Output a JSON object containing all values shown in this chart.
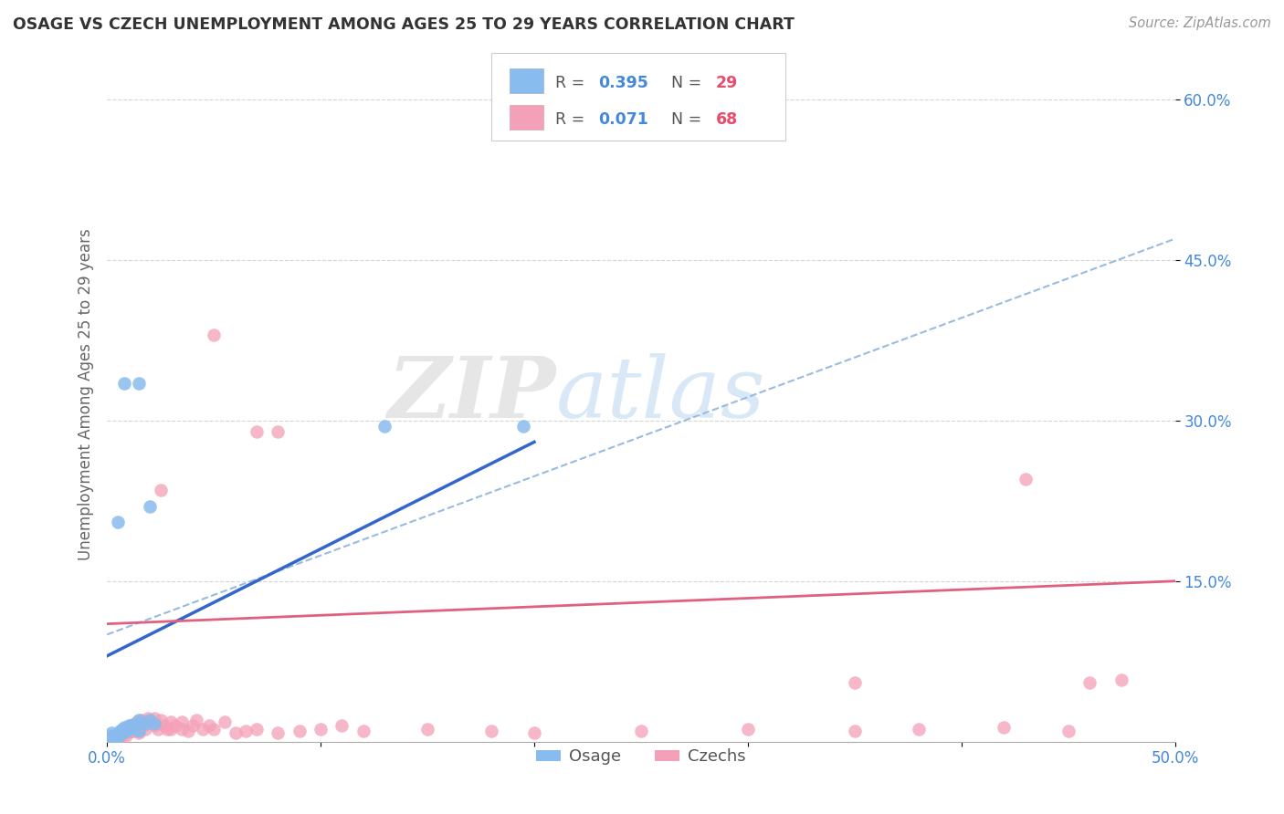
{
  "title": "OSAGE VS CZECH UNEMPLOYMENT AMONG AGES 25 TO 29 YEARS CORRELATION CHART",
  "source": "Source: ZipAtlas.com",
  "ylabel": "Unemployment Among Ages 25 to 29 years",
  "xlim": [
    0.0,
    0.5
  ],
  "ylim": [
    0.0,
    0.65
  ],
  "xticks": [
    0.0,
    0.1,
    0.2,
    0.3,
    0.4,
    0.5
  ],
  "yticks": [
    0.15,
    0.3,
    0.45,
    0.6
  ],
  "ytick_labels": [
    "15.0%",
    "30.0%",
    "45.0%",
    "60.0%"
  ],
  "xtick_labels": [
    "0.0%",
    "",
    "",
    "",
    "",
    "50.0%"
  ],
  "legend_R_color": "#4488dd",
  "legend_N_color": "#e84c6a",
  "osage_color": "#88bbee",
  "czech_color": "#f4a0b8",
  "osage_line_color": "#3366cc",
  "czech_line_color": "#e06080",
  "trend_dash_color": "#99bbdd",
  "watermark_zip": "ZIP",
  "watermark_atlas": "atlas",
  "background_color": "#ffffff",
  "grid_color": "#cccccc",
  "osage_points": [
    [
      0.001,
      0.005
    ],
    [
      0.002,
      0.008
    ],
    [
      0.002,
      0.005
    ],
    [
      0.003,
      0.003
    ],
    [
      0.004,
      0.005
    ],
    [
      0.005,
      0.006
    ],
    [
      0.005,
      0.004
    ],
    [
      0.006,
      0.01
    ],
    [
      0.006,
      0.007
    ],
    [
      0.007,
      0.012
    ],
    [
      0.008,
      0.009
    ],
    [
      0.008,
      0.013
    ],
    [
      0.009,
      0.01
    ],
    [
      0.01,
      0.012
    ],
    [
      0.01,
      0.015
    ],
    [
      0.011,
      0.013
    ],
    [
      0.012,
      0.016
    ],
    [
      0.013,
      0.015
    ],
    [
      0.015,
      0.01
    ],
    [
      0.015,
      0.02
    ],
    [
      0.018,
      0.017
    ],
    [
      0.02,
      0.02
    ],
    [
      0.022,
      0.017
    ],
    [
      0.005,
      0.205
    ],
    [
      0.008,
      0.335
    ],
    [
      0.015,
      0.335
    ],
    [
      0.02,
      0.22
    ],
    [
      0.13,
      0.295
    ],
    [
      0.195,
      0.295
    ]
  ],
  "czech_points": [
    [
      0.001,
      0.003
    ],
    [
      0.002,
      0.005
    ],
    [
      0.002,
      0.003
    ],
    [
      0.003,
      0.006
    ],
    [
      0.003,
      0.004
    ],
    [
      0.004,
      0.005
    ],
    [
      0.004,
      0.003
    ],
    [
      0.005,
      0.007
    ],
    [
      0.005,
      0.004
    ],
    [
      0.006,
      0.008
    ],
    [
      0.006,
      0.005
    ],
    [
      0.007,
      0.01
    ],
    [
      0.007,
      0.006
    ],
    [
      0.008,
      0.012
    ],
    [
      0.008,
      0.008
    ],
    [
      0.009,
      0.01
    ],
    [
      0.009,
      0.006
    ],
    [
      0.01,
      0.013
    ],
    [
      0.01,
      0.009
    ],
    [
      0.011,
      0.01
    ],
    [
      0.012,
      0.015
    ],
    [
      0.012,
      0.01
    ],
    [
      0.013,
      0.012
    ],
    [
      0.014,
      0.018
    ],
    [
      0.015,
      0.013
    ],
    [
      0.015,
      0.008
    ],
    [
      0.016,
      0.02
    ],
    [
      0.017,
      0.015
    ],
    [
      0.018,
      0.012
    ],
    [
      0.019,
      0.022
    ],
    [
      0.02,
      0.018
    ],
    [
      0.022,
      0.022
    ],
    [
      0.022,
      0.015
    ],
    [
      0.024,
      0.012
    ],
    [
      0.025,
      0.02
    ],
    [
      0.027,
      0.015
    ],
    [
      0.028,
      0.012
    ],
    [
      0.03,
      0.018
    ],
    [
      0.03,
      0.012
    ],
    [
      0.032,
      0.015
    ],
    [
      0.035,
      0.012
    ],
    [
      0.035,
      0.018
    ],
    [
      0.038,
      0.01
    ],
    [
      0.04,
      0.015
    ],
    [
      0.042,
      0.02
    ],
    [
      0.045,
      0.012
    ],
    [
      0.048,
      0.015
    ],
    [
      0.05,
      0.012
    ],
    [
      0.055,
      0.018
    ],
    [
      0.06,
      0.008
    ],
    [
      0.065,
      0.01
    ],
    [
      0.07,
      0.012
    ],
    [
      0.08,
      0.008
    ],
    [
      0.09,
      0.01
    ],
    [
      0.1,
      0.012
    ],
    [
      0.11,
      0.015
    ],
    [
      0.12,
      0.01
    ],
    [
      0.15,
      0.012
    ],
    [
      0.18,
      0.01
    ],
    [
      0.2,
      0.008
    ],
    [
      0.25,
      0.01
    ],
    [
      0.3,
      0.012
    ],
    [
      0.35,
      0.01
    ],
    [
      0.38,
      0.012
    ],
    [
      0.42,
      0.013
    ],
    [
      0.45,
      0.01
    ],
    [
      0.025,
      0.235
    ],
    [
      0.07,
      0.29
    ],
    [
      0.08,
      0.29
    ],
    [
      0.05,
      0.38
    ],
    [
      0.43,
      0.245
    ],
    [
      0.475,
      0.058
    ],
    [
      0.35,
      0.055
    ],
    [
      0.46,
      0.055
    ]
  ]
}
